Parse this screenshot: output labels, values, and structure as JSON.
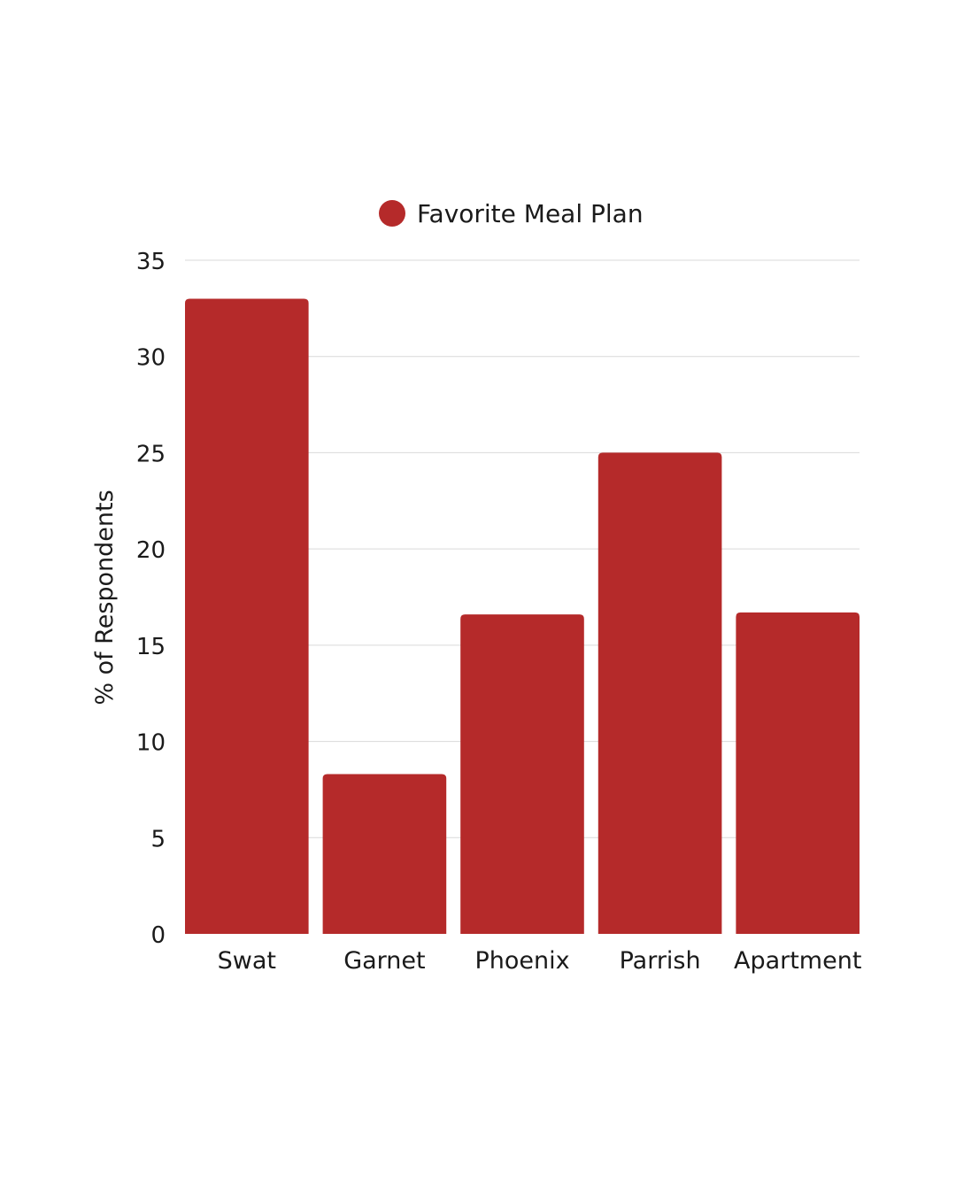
{
  "chart_data": {
    "type": "bar",
    "categories": [
      "Swat",
      "Garnet",
      "Phoenix",
      "Parrish",
      "Apartment"
    ],
    "series": [
      {
        "name": "Favorite Meal Plan",
        "values": [
          33,
          8.3,
          16.6,
          25,
          16.7
        ]
      }
    ],
    "title": "",
    "xlabel": "",
    "ylabel": "% of Respondents",
    "ylim": [
      0,
      35
    ],
    "yticks": [
      0,
      5,
      10,
      15,
      20,
      25,
      30,
      35
    ],
    "grid": true,
    "legend_position": "top-center",
    "colors": {
      "bar": "#b52a2a",
      "grid": "#d9d9d9",
      "text": "#1a1a1a"
    }
  }
}
